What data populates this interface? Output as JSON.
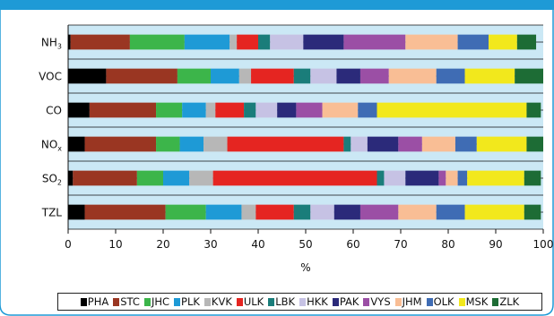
{
  "chart_data": {
    "type": "bar",
    "stacked": true,
    "orientation": "horizontal",
    "title": "",
    "xlabel": "%",
    "ylabel": "",
    "xlim": [
      0,
      100
    ],
    "xticks": [
      "0",
      "10",
      "20",
      "30",
      "40",
      "50",
      "60",
      "70",
      "80",
      "90",
      "100"
    ],
    "grid": true,
    "legend_position": "bottom",
    "categories": [
      {
        "base": "NH",
        "sub": "3"
      },
      {
        "base": "VOC",
        "sub": ""
      },
      {
        "base": "CO",
        "sub": ""
      },
      {
        "base": "NO",
        "sub": "x"
      },
      {
        "base": "SO",
        "sub": "2"
      },
      {
        "base": "TZL",
        "sub": ""
      }
    ],
    "series": [
      {
        "name": "PHA",
        "color": "#000000",
        "values": [
          0.5,
          8,
          4.5,
          3.5,
          1,
          3.5
        ]
      },
      {
        "name": "STC",
        "color": "#9a3622",
        "values": [
          12.5,
          15,
          14,
          15,
          13.5,
          17
        ]
      },
      {
        "name": "JHC",
        "color": "#3cb54a",
        "values": [
          11.5,
          7,
          5.5,
          5,
          5.5,
          8.5
        ]
      },
      {
        "name": "PLK",
        "color": "#1e9ad6",
        "values": [
          9.5,
          6,
          5,
          5,
          5.5,
          7.5
        ]
      },
      {
        "name": "KVK",
        "color": "#b7b7b7",
        "values": [
          1.5,
          2.5,
          2,
          5,
          5,
          3
        ]
      },
      {
        "name": "ULK",
        "color": "#e52521",
        "values": [
          4.5,
          9,
          6,
          24.5,
          34.5,
          8
        ]
      },
      {
        "name": "LBK",
        "color": "#1a7d7a",
        "values": [
          2.5,
          3.5,
          2.5,
          1.5,
          1.5,
          3.5
        ]
      },
      {
        "name": "HKK",
        "color": "#c6c2e4",
        "values": [
          7,
          5.5,
          4.5,
          3.5,
          4.5,
          5
        ]
      },
      {
        "name": "PAK",
        "color": "#2b2a7a",
        "values": [
          8.5,
          5,
          4,
          6.5,
          7,
          5.5
        ]
      },
      {
        "name": "VYS",
        "color": "#9b4fa5",
        "values": [
          13,
          6,
          5.5,
          5,
          1.5,
          8
        ]
      },
      {
        "name": "JHM",
        "color": "#f9be95",
        "values": [
          11,
          10,
          7.5,
          7,
          2.5,
          8
        ]
      },
      {
        "name": "OLK",
        "color": "#3f6cb4",
        "values": [
          6.5,
          6,
          4,
          4.5,
          2,
          6
        ]
      },
      {
        "name": "MSK",
        "color": "#f2e81c",
        "values": [
          6,
          10.5,
          31.5,
          10.5,
          12,
          12.5
        ]
      },
      {
        "name": "ZLK",
        "color": "#1d6c35",
        "values": [
          4,
          6,
          3,
          3.5,
          3.5,
          3.5
        ]
      }
    ]
  }
}
